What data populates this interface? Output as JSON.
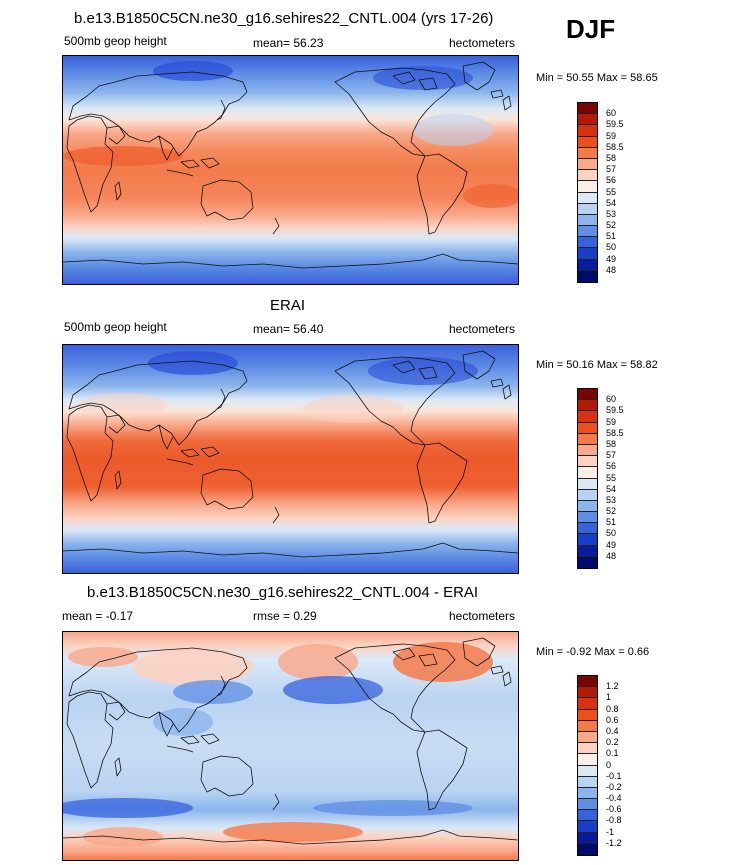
{
  "season": "DJF",
  "panels": [
    {
      "title": "b.e13.B1850C5CN.ne30_g16.sehires22_CNTL.004 (yrs 17-26)",
      "left_label": "500mb geop height",
      "center_label": "mean=  56.23",
      "right_label": "hectometers",
      "minmax": "Min =  50.55 Max =  58.65",
      "colorbar_labels": [
        "60",
        "59.5",
        "59",
        "58.5",
        "58",
        "57",
        "56",
        "55",
        "54",
        "53",
        "52",
        "51",
        "50",
        "49",
        "48"
      ],
      "colors": [
        "#7a0403",
        "#b21a08",
        "#d9300f",
        "#ee4d1c",
        "#f57a4a",
        "#f9a88a",
        "#fcd2c2",
        "#fbeee6",
        "#dbe9f7",
        "#b9d3f2",
        "#8cb5ec",
        "#5f8ee4",
        "#3563dd",
        "#1b3ec8",
        "#0a1c9c",
        "#000c6b"
      ],
      "map": "model"
    },
    {
      "title": "ERAI",
      "left_label": "500mb geop height",
      "center_label": "mean=  56.40",
      "right_label": "hectometers",
      "minmax": "Min =  50.16 Max =  58.82",
      "colorbar_labels": [
        "60",
        "59.5",
        "59",
        "58.5",
        "58",
        "57",
        "56",
        "55",
        "54",
        "53",
        "52",
        "51",
        "50",
        "49",
        "48"
      ],
      "colors": [
        "#7a0403",
        "#b21a08",
        "#d9300f",
        "#ee4d1c",
        "#f57a4a",
        "#f9a88a",
        "#fcd2c2",
        "#fbeee6",
        "#dbe9f7",
        "#b9d3f2",
        "#8cb5ec",
        "#5f8ee4",
        "#3563dd",
        "#1b3ec8",
        "#0a1c9c",
        "#000c6b"
      ],
      "map": "obs"
    },
    {
      "title": "b.e13.B1850C5CN.ne30_g16.sehires22_CNTL.004 - ERAI",
      "left_label": "mean =  -0.17",
      "center_label": "rmse =   0.29",
      "right_label": "hectometers",
      "minmax": "Min =  -0.92 Max =   0.66",
      "colorbar_labels": [
        "1.2",
        "1",
        "0.8",
        "0.6",
        "0.4",
        "0.2",
        "0.1",
        "0",
        "-0.1",
        "-0.2",
        "-0.4",
        "-0.6",
        "-0.8",
        "-1",
        "-1.2"
      ],
      "colors": [
        "#7a0403",
        "#b21a08",
        "#d9300f",
        "#ee4d1c",
        "#f57a4a",
        "#f9a88a",
        "#fcd2c2",
        "#fbeee6",
        "#dbe9f7",
        "#b9d3f2",
        "#8cb5ec",
        "#5f8ee4",
        "#3563dd",
        "#1b3ec8",
        "#0a1c9c",
        "#000c6b"
      ],
      "map": "diff"
    }
  ]
}
